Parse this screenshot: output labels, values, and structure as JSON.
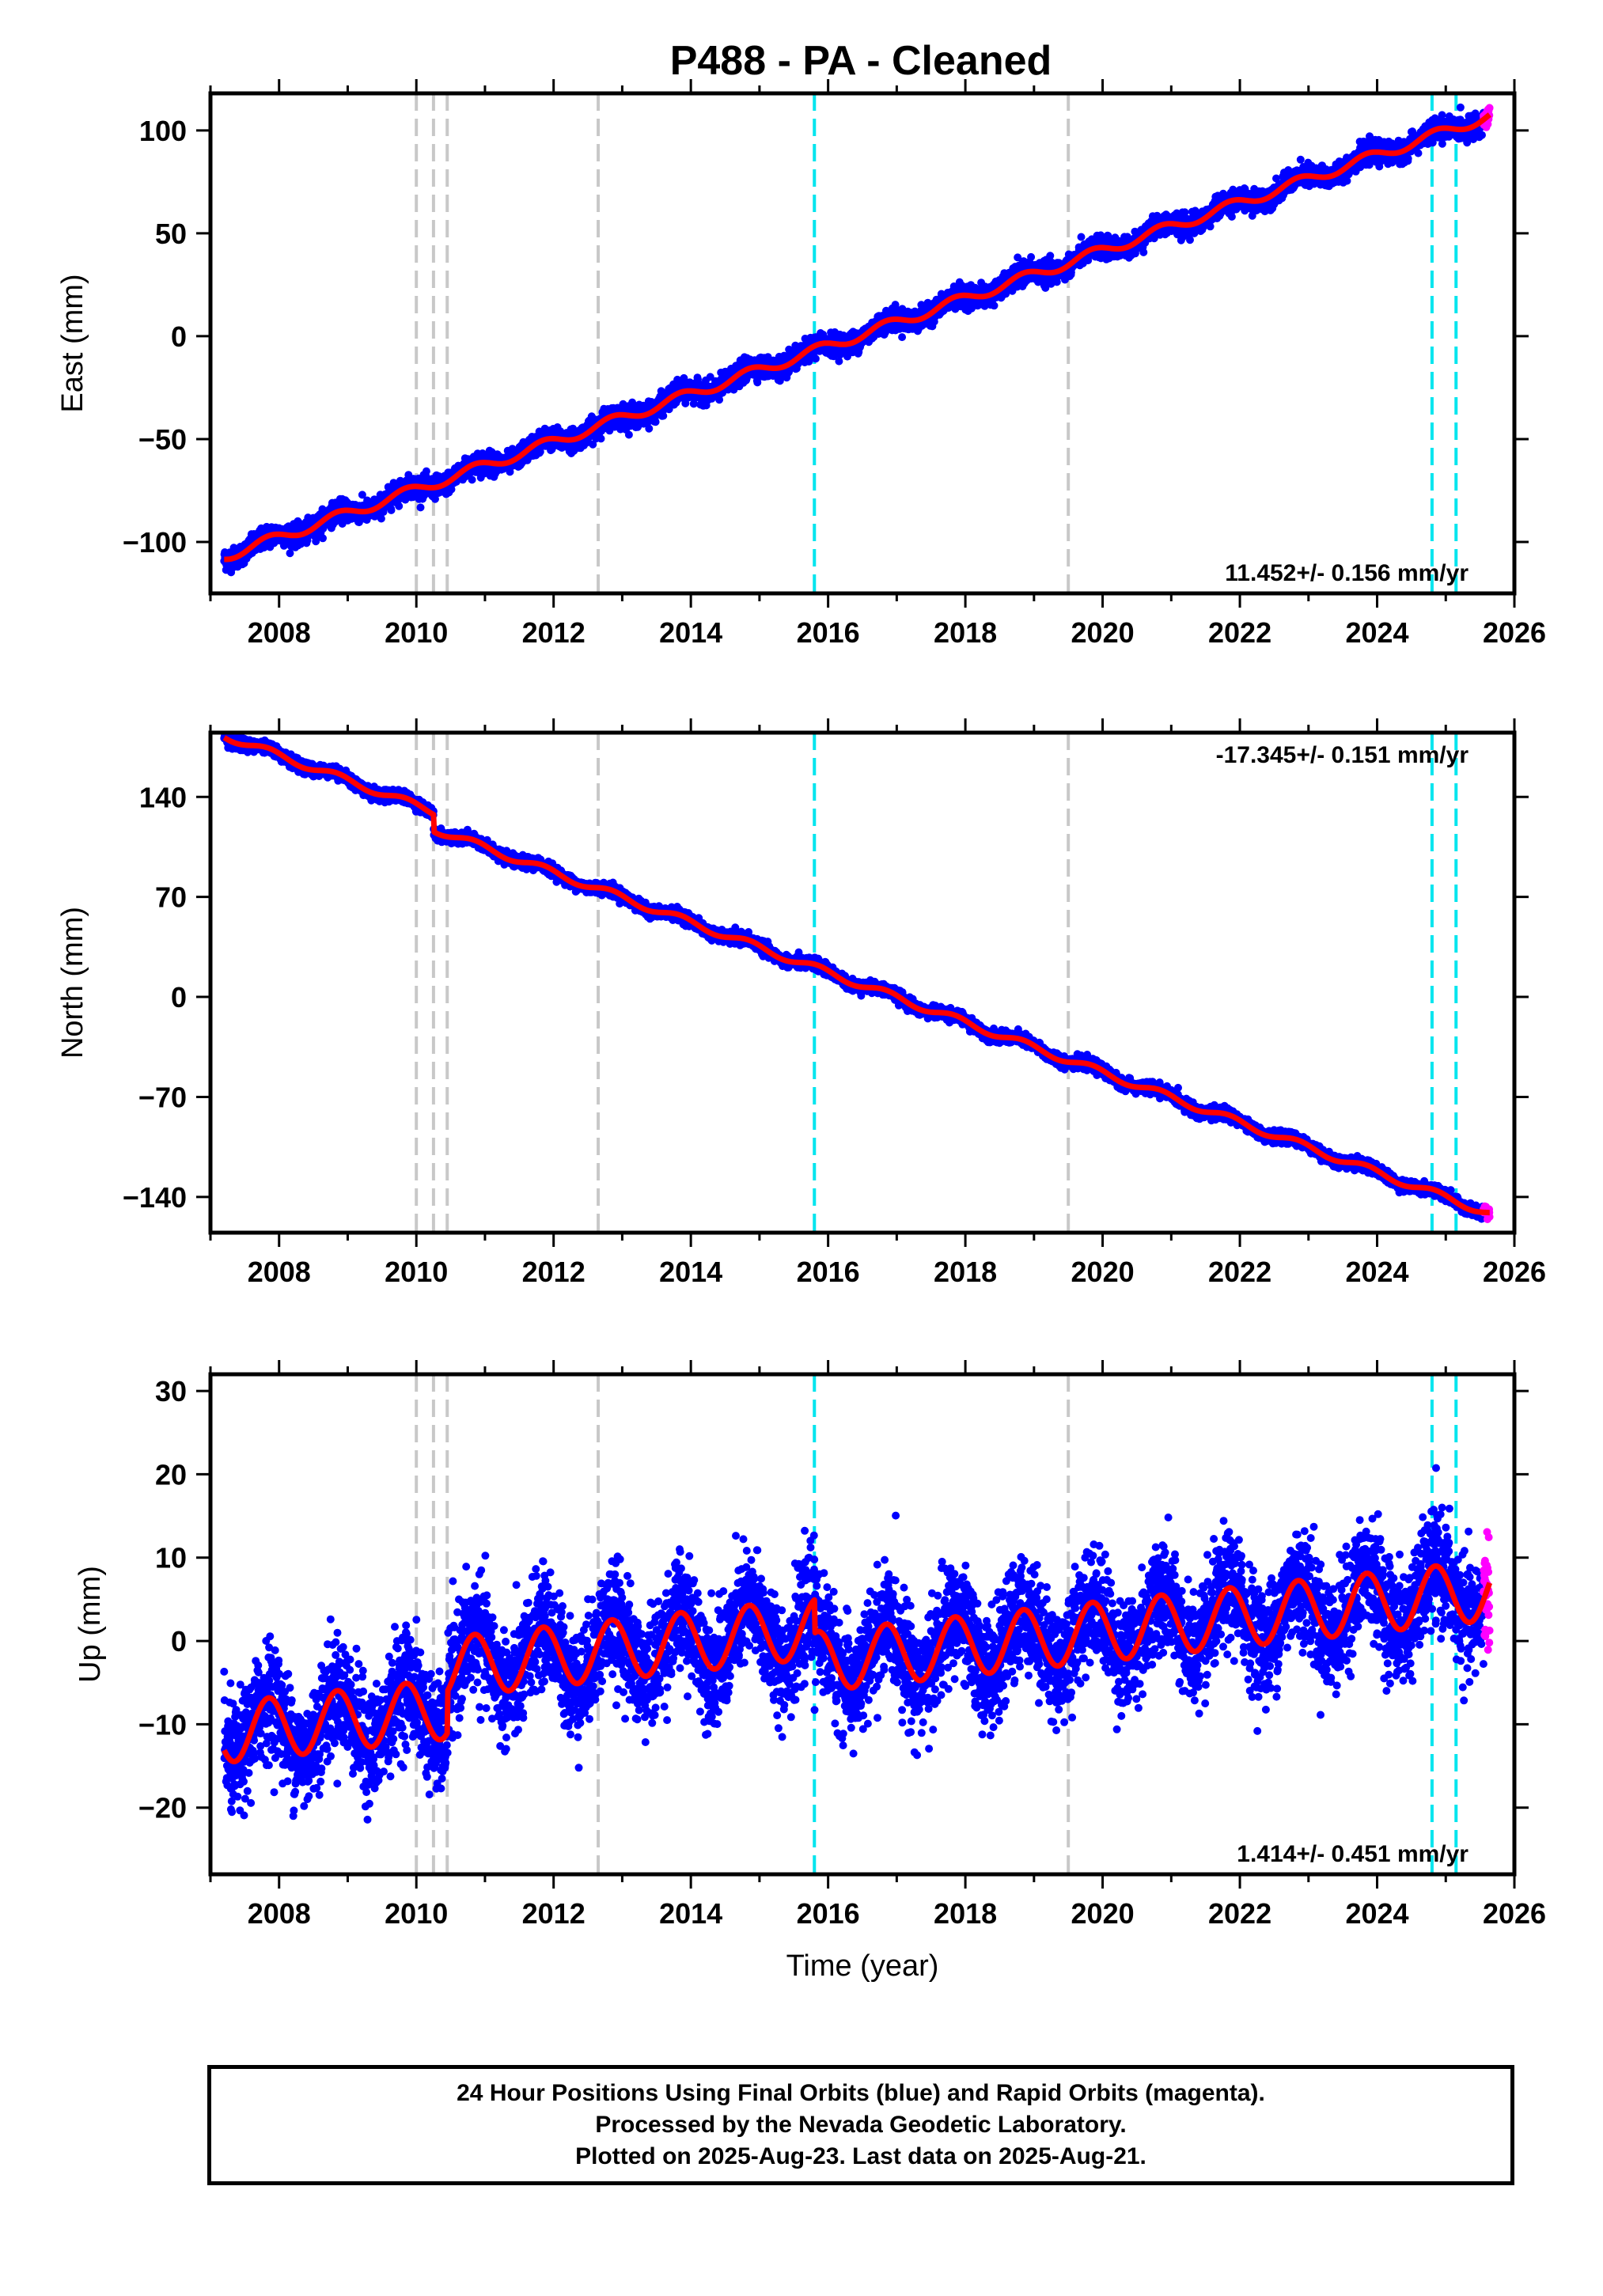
{
  "title": "P488  - PA - Cleaned",
  "footer": {
    "line1": "24 Hour Positions Using Final Orbits (blue) and Rapid Orbits (magenta).",
    "line2": "Processed by the Nevada Geodetic Laboratory.",
    "line3": "Plotted on 2025-Aug-23. Last data on 2025-Aug-21."
  },
  "colors": {
    "final": "#0000ff",
    "rapid": "#ff00ff",
    "model": "#ff0000",
    "equipment_change": "#c8c8c8",
    "earthquake": "#00e5ee"
  },
  "chart_data": [
    {
      "type": "scatter",
      "ylabel": "East (mm)",
      "xlabel": "",
      "xlim": [
        2007,
        2026
      ],
      "ylim": [
        -125,
        118
      ],
      "yticks": [
        100,
        50,
        0,
        -50,
        -100
      ],
      "yticklabels": [
        "100",
        "50",
        "0",
        "−50",
        "−100"
      ],
      "xticks": [
        2008,
        2010,
        2012,
        2014,
        2016,
        2018,
        2020,
        2022,
        2024,
        2026
      ],
      "rate_label": "11.452+/- 0.156 mm/yr",
      "rate_position": "bottom-right",
      "start_year": 2007.2,
      "final_end_year": 2025.55,
      "rapid_end_year": 2025.64,
      "value_start": -107,
      "value_end": 106,
      "seasonal_amplitude": 2.5,
      "scatter": 2.5,
      "offsets": [],
      "equipment_lines": [
        2010.0,
        2010.25,
        2010.45,
        2012.65,
        2019.5
      ],
      "earthquake_lines": [
        2015.8,
        2024.8,
        2025.15
      ]
    },
    {
      "type": "scatter",
      "ylabel": "North (mm)",
      "xlabel": "",
      "xlim": [
        2007,
        2026
      ],
      "ylim": [
        -165,
        185
      ],
      "yticks": [
        140,
        70,
        0,
        -70,
        -140
      ],
      "yticklabels": [
        "140",
        "70",
        "0",
        "−70",
        "−140"
      ],
      "xticks": [
        2008,
        2010,
        2012,
        2014,
        2016,
        2018,
        2020,
        2022,
        2024,
        2026
      ],
      "rate_label": "-17.345+/- 0.151 mm/yr",
      "rate_position": "top-right",
      "start_year": 2007.2,
      "final_end_year": 2025.55,
      "rapid_end_year": 2025.64,
      "value_start": 183,
      "value_end": -150,
      "seasonal_amplitude": 2.5,
      "scatter": 2.0,
      "offsets": [
        {
          "year": 2010.25,
          "value": -12
        }
      ],
      "equipment_lines": [
        2010.0,
        2010.25,
        2010.45,
        2012.65,
        2019.5
      ],
      "earthquake_lines": [
        2015.8,
        2024.8,
        2025.15
      ]
    },
    {
      "type": "scatter",
      "ylabel": "Up (mm)",
      "xlabel": "Time (year)",
      "xlim": [
        2007,
        2026
      ],
      "ylim": [
        -28,
        32
      ],
      "yticks": [
        30,
        20,
        10,
        0,
        -10,
        -20
      ],
      "yticklabels": [
        "30",
        "20",
        "10",
        "0",
        "−10",
        "−20"
      ],
      "xticks": [
        2008,
        2010,
        2012,
        2014,
        2016,
        2018,
        2020,
        2022,
        2024,
        2026
      ],
      "rate_label": "1.414+/- 0.451 mm/yr",
      "rate_position": "bottom-right",
      "start_year": 2007.2,
      "final_end_year": 2025.55,
      "rapid_end_year": 2025.64,
      "value_start": -11,
      "value_end": 6,
      "seasonal_amplitude": 3.6,
      "scatter": 3.3,
      "offsets": [
        {
          "year": 2010.45,
          "value": 5
        },
        {
          "year": 2015.8,
          "value": -4
        }
      ],
      "equipment_lines": [
        2010.0,
        2010.25,
        2010.45,
        2012.65,
        2019.5
      ],
      "earthquake_lines": [
        2015.8,
        2024.8,
        2025.15
      ]
    }
  ]
}
